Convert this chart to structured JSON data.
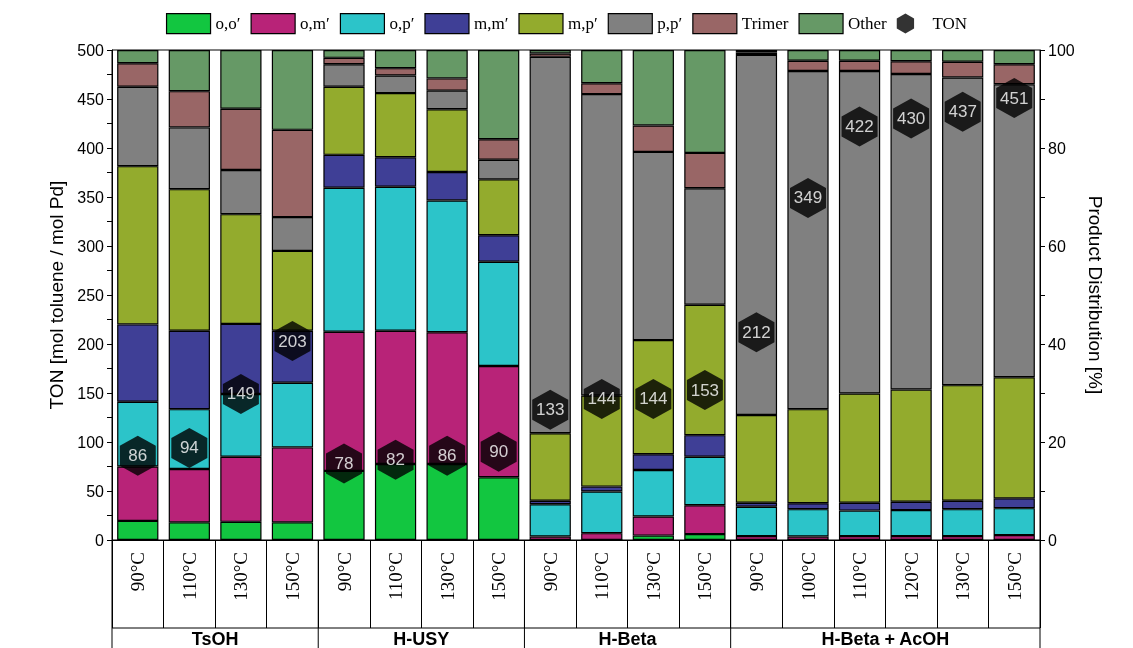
{
  "chart_data": {
    "type": "bar",
    "stacked": true,
    "legend": "top",
    "grid": false,
    "ylabel": "TON [mol toluene / mol Pd]",
    "y2label": "Product Distribution [%]",
    "categories": [
      "90°C",
      "110°C",
      "130°C",
      "150°C",
      "90°C",
      "110°C",
      "130°C",
      "150°C",
      "90°C",
      "110°C",
      "130°C",
      "150°C",
      "90°C",
      "100°C",
      "110°C",
      "120°C",
      "130°C",
      "150°C"
    ],
    "annotations": [
      "TsOH",
      "H-USY",
      "H-Beta",
      "H-Beta + AcOH"
    ],
    "ylim": [
      0,
      500
    ],
    "yticks": [
      0,
      {
        "value": 25,
        "label": null
      },
      50,
      {
        "value": 75,
        "label": null
      },
      100,
      {
        "value": 125,
        "label": null
      },
      150,
      {
        "value": 175,
        "label": null
      },
      200,
      {
        "value": 225,
        "label": null
      },
      250,
      {
        "value": 275,
        "label": null
      },
      300,
      {
        "value": 325,
        "label": null
      },
      350,
      {
        "value": 375,
        "label": null
      },
      400,
      {
        "value": 425,
        "label": null
      },
      450,
      {
        "value": 475,
        "label": null
      },
      500
    ],
    "y2lim": [
      0,
      100
    ],
    "y2ticks": [
      0,
      {
        "value": 10,
        "label": null
      },
      20,
      {
        "value": 30,
        "label": null
      },
      40,
      {
        "value": 50,
        "label": null
      },
      60,
      {
        "value": 70,
        "label": null
      },
      80,
      {
        "value": 90,
        "label": null
      },
      100
    ],
    "series": [
      {
        "name": "o,o′",
        "color": "#12c640",
        "axis": "y2",
        "values": [
          3.9,
          3.6,
          3.7,
          3.6,
          14.1,
          15.5,
          15.5,
          12.8,
          0,
          0,
          0.9,
          1.2,
          0,
          0,
          0,
          0,
          0,
          0
        ]
      },
      {
        "name": "o,m′",
        "color": "#b82378",
        "axis": "y2",
        "values": [
          11.1,
          10.9,
          13.3,
          15.3,
          28.4,
          27.2,
          26.9,
          22.7,
          0.7,
          1.4,
          3.9,
          5.9,
          0.8,
          0.7,
          0.8,
          0.8,
          0.8,
          1.0
        ]
      },
      {
        "name": "o,p′",
        "color": "#2cc4c9",
        "axis": "y2",
        "values": [
          13.2,
          12.2,
          12.8,
          13.2,
          29.4,
          29.4,
          26.9,
          21.3,
          6.6,
          8.5,
          9.5,
          9.9,
          6.0,
          5.6,
          5.2,
          5.3,
          5.5,
          5.5
        ]
      },
      {
        "name": "m,m′",
        "color": "#3f3f96",
        "axis": "y2",
        "values": [
          15.8,
          16.0,
          14.3,
          10.6,
          6.7,
          6.0,
          5.8,
          5.4,
          0.7,
          1.0,
          3.2,
          4.4,
          0.8,
          1.2,
          1.6,
          1.7,
          1.7,
          2.0
        ]
      },
      {
        "name": "m,p′",
        "color": "#93ab2d",
        "axis": "y2",
        "values": [
          32.3,
          28.9,
          22.4,
          16.3,
          13.9,
          13.1,
          12.8,
          11.4,
          13.8,
          18.6,
          23.3,
          26.6,
          17.9,
          19.2,
          22.3,
          22.9,
          23.6,
          24.7
        ]
      },
      {
        "name": "p,p′",
        "color": "#808080",
        "axis": "y2",
        "values": [
          16.2,
          12.6,
          9.0,
          6.9,
          4.6,
          3.6,
          3.8,
          4.0,
          76.8,
          61.5,
          38.4,
          23.8,
          73.5,
          69.0,
          65.8,
          64.4,
          62.8,
          59.8
        ]
      },
      {
        "name": "Trimer",
        "color": "#996666",
        "axis": "y2",
        "values": [
          4.8,
          7.4,
          12.5,
          17.8,
          1.3,
          1.5,
          2.5,
          4.2,
          0.7,
          2.2,
          5.4,
          7.2,
          0.5,
          2.1,
          2.1,
          2.6,
          3.2,
          4.1
        ]
      },
      {
        "name": "Other",
        "color": "#669966",
        "axis": "y2",
        "values": [
          2.7,
          8.4,
          12.0,
          16.3,
          1.6,
          3.7,
          5.8,
          18.2,
          0.7,
          6.8,
          15.4,
          21.0,
          0.5,
          2.2,
          2.2,
          2.3,
          2.4,
          2.9
        ]
      },
      {
        "name": "TON",
        "type": "scatter",
        "color": "#000000",
        "axis": "y",
        "values": [
          86,
          94,
          149,
          203,
          78,
          82,
          86,
          90,
          133,
          144,
          144,
          153,
          212,
          349,
          422,
          430,
          437,
          451
        ],
        "value_labels": [
          "86",
          "94",
          "149",
          "203",
          "78",
          "82",
          "86",
          "90",
          "133",
          "144",
          "144",
          "153",
          "212",
          "349",
          "422",
          "430",
          "437",
          "451"
        ]
      }
    ]
  }
}
